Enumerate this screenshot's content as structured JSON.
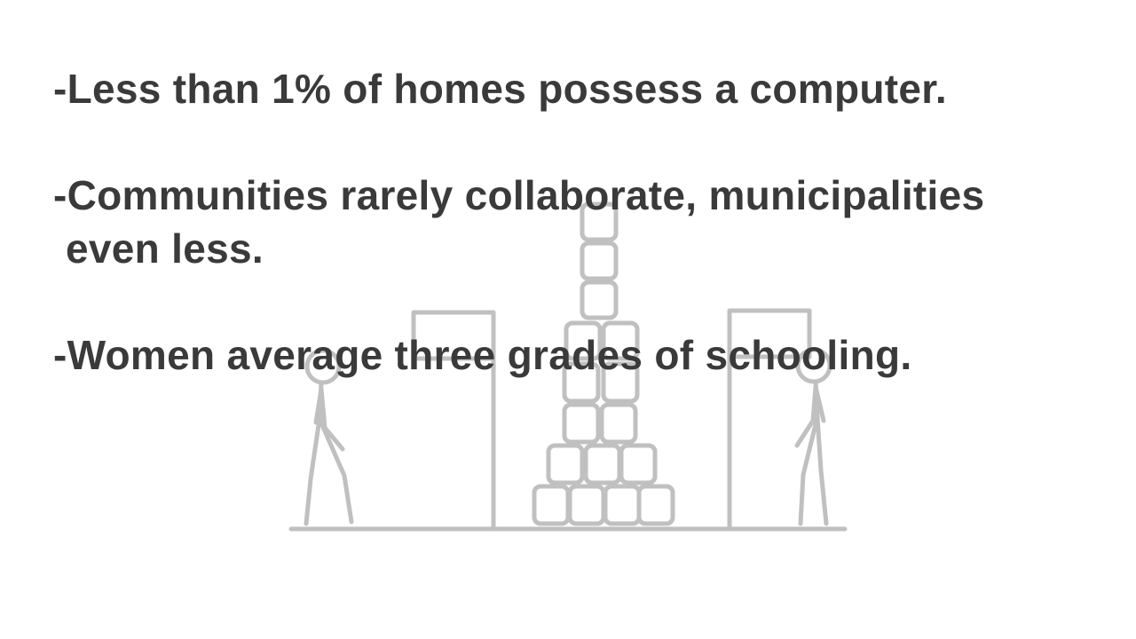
{
  "colors": {
    "text": "#3a3a3a",
    "illustration": "#c0c0c0",
    "background": "#ffffff"
  },
  "bullets": [
    {
      "line1": "-Less than 1% of homes possess a computer."
    },
    {
      "line1": "-Communities rarely collaborate, municipalities",
      "line2": "even less."
    },
    {
      "line1": "-Women average three grades of schooling."
    }
  ],
  "illustration": {
    "subject": "stick-figures-doors-stacked-blocks-icon"
  }
}
